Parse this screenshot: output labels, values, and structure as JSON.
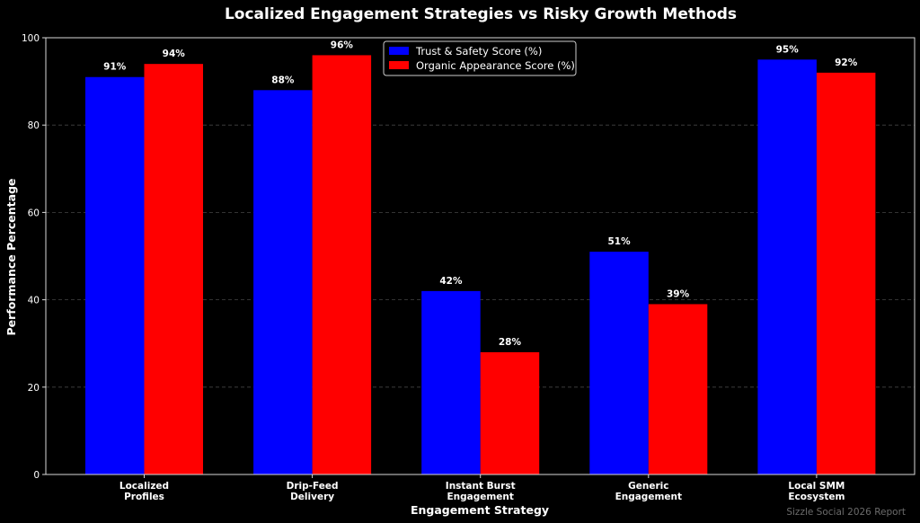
{
  "chart_data": {
    "type": "bar",
    "title": "Localized Engagement Strategies vs Risky Growth Methods",
    "xlabel": "Engagement Strategy",
    "ylabel": "Performance Percentage",
    "ylim": [
      0,
      100
    ],
    "yticks": [
      0,
      20,
      40,
      60,
      80,
      100
    ],
    "grid": true,
    "legend_position": "top-center",
    "categories": [
      [
        "Localized",
        "Profiles"
      ],
      [
        "Drip-Feed",
        "Delivery"
      ],
      [
        "Instant Burst",
        "Engagement"
      ],
      [
        "Generic",
        "Engagement"
      ],
      [
        "Local SMM",
        "Ecosystem"
      ]
    ],
    "series": [
      {
        "name": "Trust & Safety Score (%)",
        "color": "#0000ff",
        "values": [
          91,
          88,
          42,
          51,
          95
        ]
      },
      {
        "name": "Organic Appearance Score (%)",
        "color": "#ff0000",
        "values": [
          94,
          96,
          28,
          39,
          92
        ]
      }
    ],
    "data_label_suffix": "%",
    "watermark": "Sizzle Social 2026 Report"
  }
}
